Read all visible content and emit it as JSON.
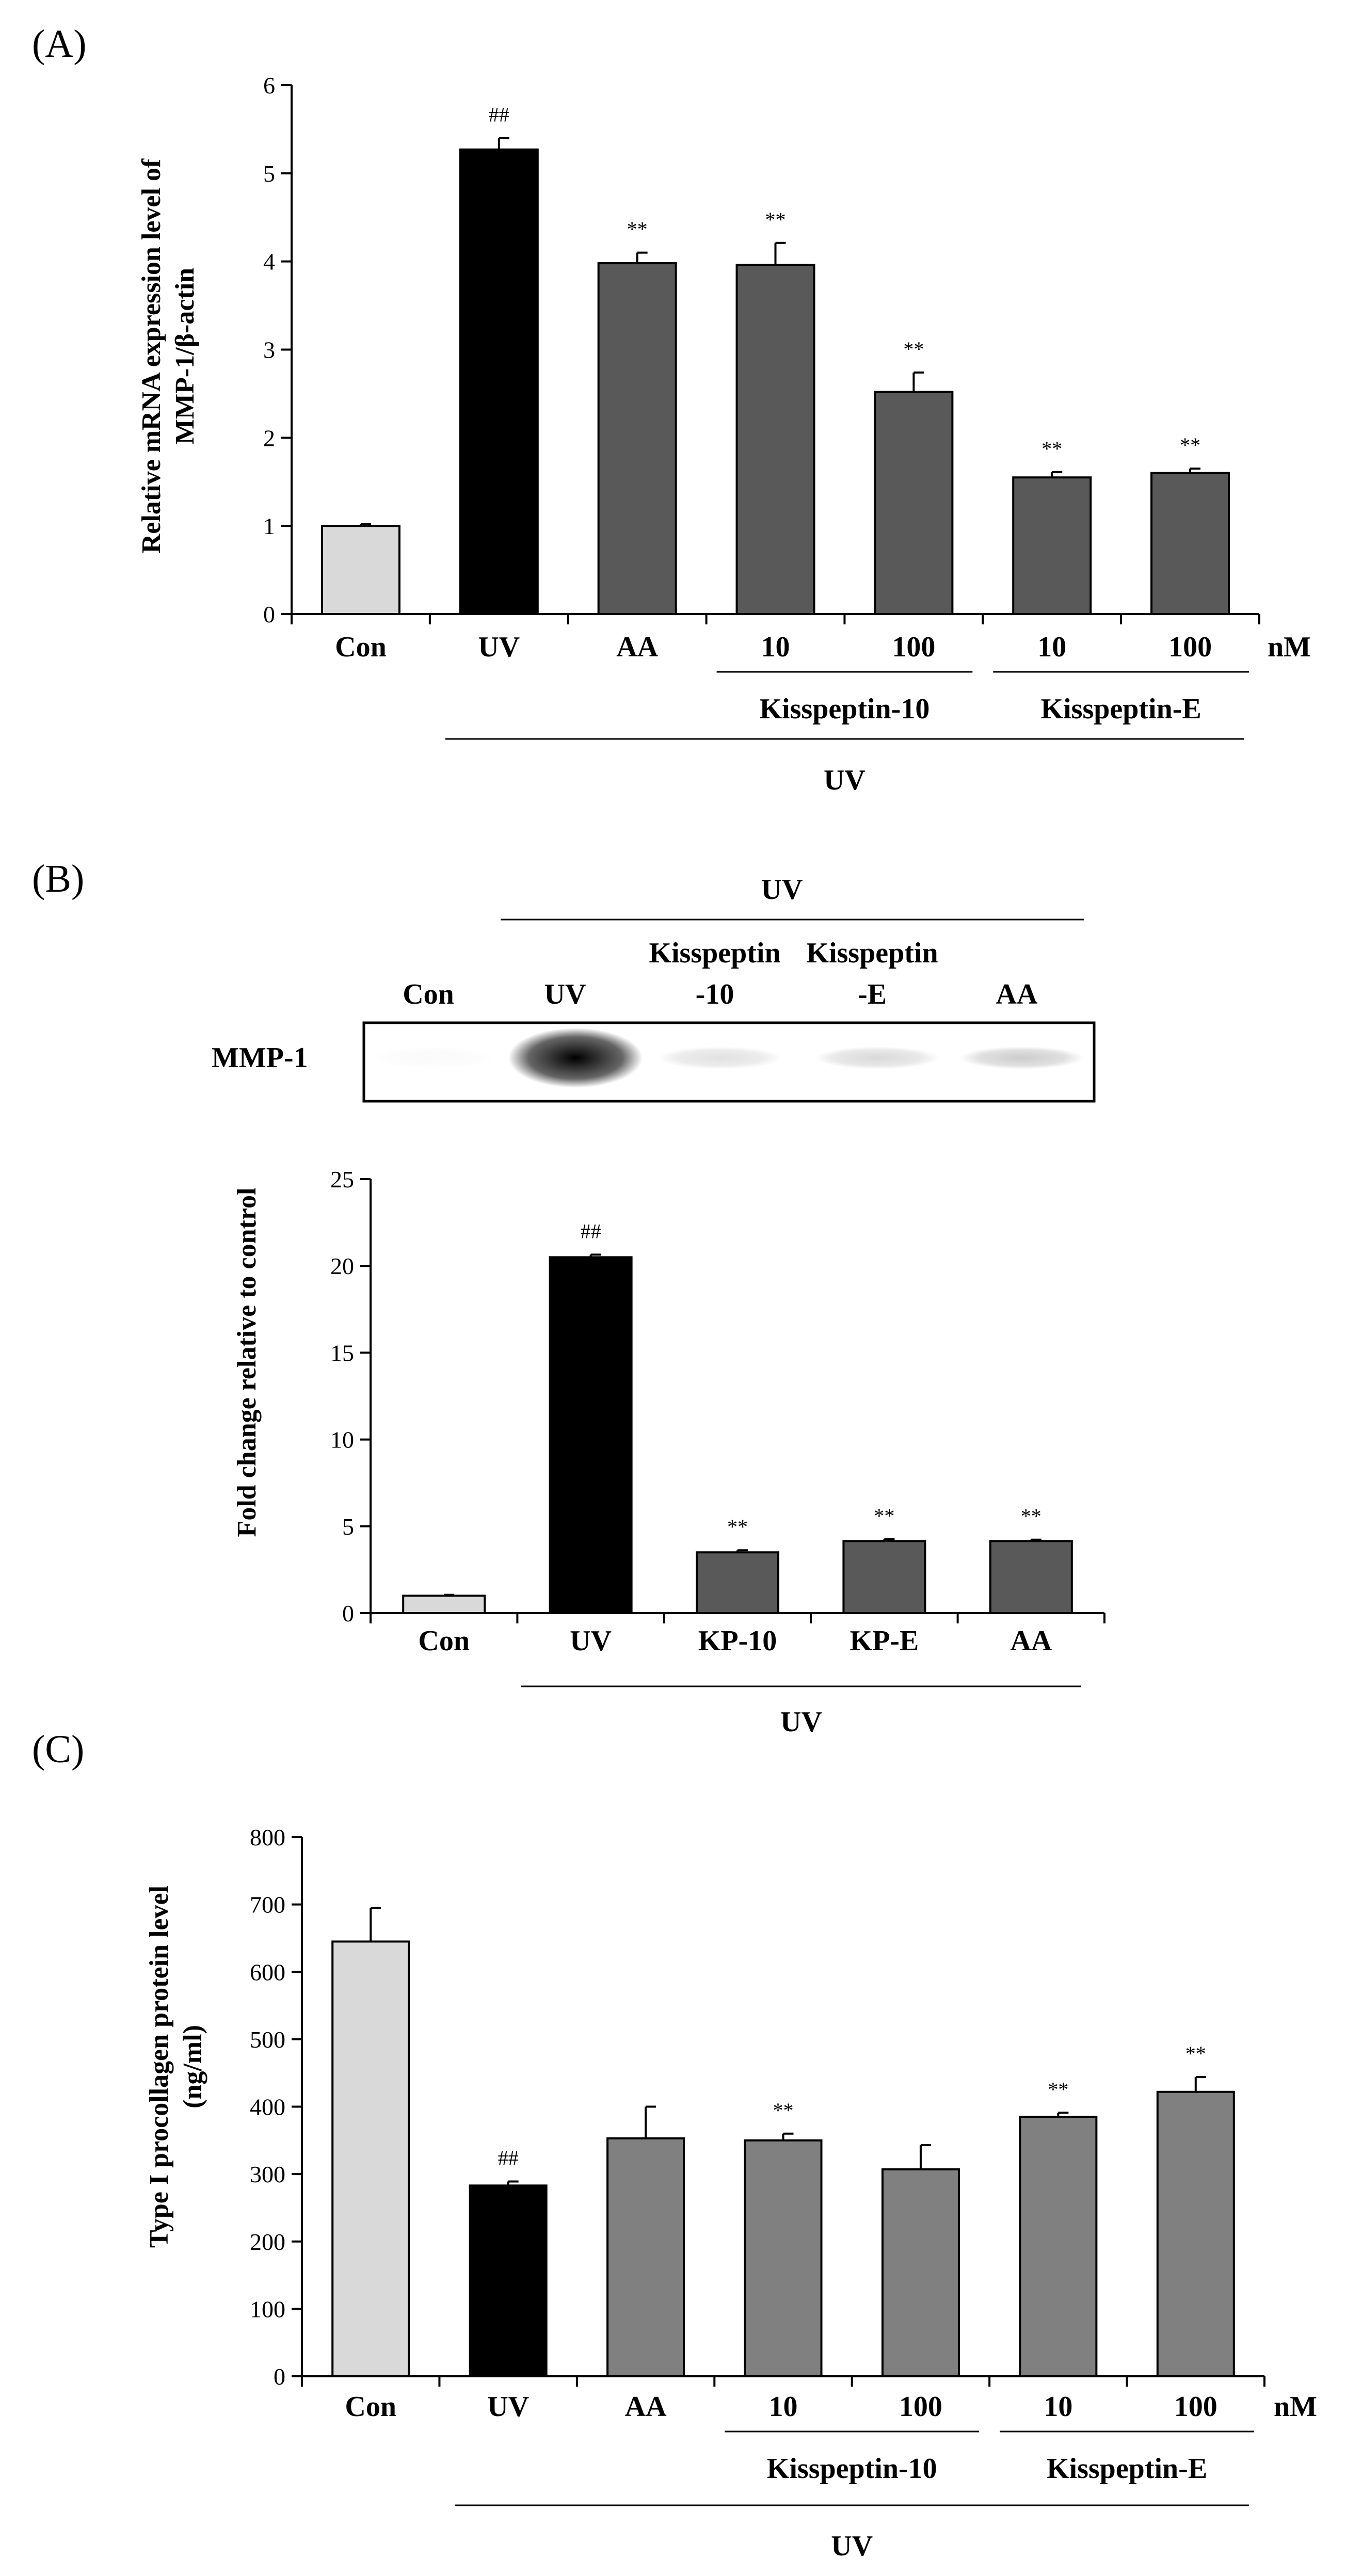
{
  "chart_data": [
    {
      "type": "bar",
      "panel_label": "(A)",
      "ylabel_lines": [
        "Relative mRNA expression level of",
        "MMP-1/β-actin"
      ],
      "ylim": [
        0,
        6
      ],
      "yticks": [
        "0",
        "1",
        "2",
        "3",
        "4",
        "5",
        "6"
      ],
      "categories": [
        "Con",
        "UV",
        "AA",
        "10",
        "100",
        "10",
        "100"
      ],
      "values": [
        1.0,
        5.27,
        3.98,
        3.96,
        2.52,
        1.55,
        1.6
      ],
      "errors": [
        0.02,
        0.13,
        0.12,
        0.25,
        0.22,
        0.06,
        0.05
      ],
      "significance": [
        "",
        "##",
        "**",
        "**",
        "**",
        "**",
        "**"
      ],
      "bar_colors": [
        "#d9d9d9",
        "#000000",
        "#595959",
        "#595959",
        "#595959",
        "#595959",
        "#595959"
      ],
      "unit": "nM",
      "groups": [
        {
          "label": "Kisspeptin-10",
          "from": 3,
          "to": 4
        },
        {
          "label": "Kisspeptin-E",
          "from": 5,
          "to": 6
        }
      ],
      "bottom_label": "UV"
    },
    {
      "type": "bar",
      "panel_label": "(B)",
      "ylabel": "Fold change relative to control",
      "ylim": [
        0,
        25
      ],
      "yticks": [
        "0",
        "5",
        "10",
        "15",
        "20",
        "25"
      ],
      "categories": [
        "Con",
        "UV",
        "KP-10",
        "KP-E",
        "AA"
      ],
      "values": [
        1.0,
        20.5,
        3.5,
        4.15,
        4.15
      ],
      "errors": [
        0.05,
        0.15,
        0.12,
        0.1,
        0.08
      ],
      "significance": [
        "",
        "##",
        "**",
        "**",
        "**"
      ],
      "bar_colors": [
        "#d9d9d9",
        "#000000",
        "#595959",
        "#595959",
        "#595959"
      ],
      "bottom_label": "UV"
    },
    {
      "type": "bar",
      "panel_label": "(C)",
      "ylabel_lines": [
        "Type I procollagen protein level",
        "(ng/ml)"
      ],
      "ylim": [
        0,
        800
      ],
      "yticks": [
        "0",
        "100",
        "200",
        "300",
        "400",
        "500",
        "600",
        "700",
        "800"
      ],
      "categories": [
        "Con",
        "UV",
        "AA",
        "10",
        "100",
        "10",
        "100"
      ],
      "values": [
        645,
        283,
        353,
        350,
        307,
        385,
        422
      ],
      "errors": [
        50,
        6,
        47,
        10,
        36,
        6,
        22
      ],
      "significance": [
        "",
        "##",
        "",
        "**",
        "",
        "**",
        "**"
      ],
      "bar_colors": [
        "#d9d9d9",
        "#000000",
        "#808080",
        "#808080",
        "#808080",
        "#808080",
        "#808080"
      ],
      "unit": "nM",
      "groups": [
        {
          "label": "Kisspeptin-10",
          "from": 3,
          "to": 4
        },
        {
          "label": "Kisspeptin-E",
          "from": 5,
          "to": 6
        }
      ],
      "bottom_label": "UV"
    }
  ],
  "blot": {
    "top_label": "UV",
    "protein": "MMP-1",
    "lane_labels": [
      {
        "lines": [
          "Con"
        ]
      },
      {
        "lines": [
          "UV"
        ]
      },
      {
        "lines": [
          "Kisspeptin",
          "-10"
        ]
      },
      {
        "lines": [
          "Kisspeptin",
          "-E"
        ]
      },
      {
        "lines": [
          "AA"
        ]
      }
    ],
    "band_intensity": [
      0.02,
      1.0,
      0.12,
      0.15,
      0.2
    ]
  }
}
